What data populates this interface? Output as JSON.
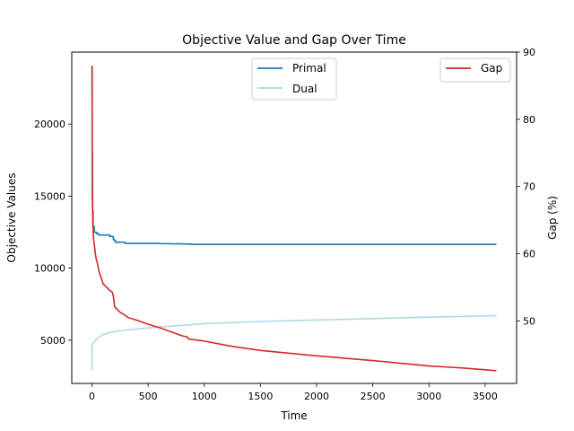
{
  "chart_data": {
    "type": "line",
    "title": "Objective Value and Gap Over Time",
    "xlabel": "Time",
    "ylabel_left": "Objective Values",
    "ylabel_right": "Gap (%)",
    "xlim": [
      -180,
      3780
    ],
    "ylim_left": [
      2000,
      25000
    ],
    "ylim_right": [
      40.7,
      90
    ],
    "x_ticks": [
      0,
      500,
      1000,
      1500,
      2000,
      2500,
      3000,
      3500
    ],
    "x_tick_labels": [
      "0",
      "500",
      "1000",
      "1500",
      "2000",
      "2500",
      "3000",
      "3500"
    ],
    "y_left_ticks": [
      5000,
      10000,
      15000,
      20000
    ],
    "y_left_tick_labels": [
      "5000",
      "10000",
      "15000",
      "20000"
    ],
    "y_right_ticks": [
      50,
      60,
      70,
      80,
      90
    ],
    "y_right_tick_labels": [
      "50",
      "60",
      "70",
      "80",
      "90"
    ],
    "grid": false,
    "legend_left": {
      "placement": "upper-center",
      "entries": [
        "Primal",
        "Dual"
      ]
    },
    "legend_right": {
      "placement": "upper-right",
      "entries": [
        "Gap"
      ]
    },
    "series": [
      {
        "name": "Primal",
        "axis": "left",
        "color": "#1f77b4",
        "step": true,
        "x": [
          0,
          2,
          4,
          6,
          10,
          20,
          40,
          60,
          160,
          190,
          200,
          210,
          290,
          300,
          500,
          600,
          650,
          700,
          800,
          850,
          880,
          1000,
          1500,
          2000,
          2500,
          3000,
          3600
        ],
        "y": [
          24000,
          18000,
          15000,
          14000,
          12900,
          12500,
          12400,
          12300,
          12200,
          12000,
          11900,
          11800,
          11750,
          11720,
          11720,
          11700,
          11700,
          11690,
          11680,
          11670,
          11650,
          11650,
          11650,
          11650,
          11650,
          11650,
          11650
        ]
      },
      {
        "name": "Dual",
        "axis": "left",
        "color": "#add8e6",
        "step": false,
        "x": [
          0,
          1,
          5,
          10,
          20,
          40,
          60,
          80,
          100,
          150,
          200,
          300,
          500,
          750,
          1000,
          1500,
          2000,
          2500,
          3000,
          3600
        ],
        "y": [
          2950,
          4500,
          4700,
          4800,
          4900,
          5050,
          5200,
          5300,
          5400,
          5500,
          5600,
          5700,
          5850,
          6000,
          6150,
          6300,
          6400,
          6500,
          6600,
          6700
        ]
      },
      {
        "name": "Gap",
        "axis": "right",
        "color": "#d62728",
        "step": false,
        "x": [
          0,
          1,
          2,
          3,
          5,
          8,
          12,
          16,
          20,
          30,
          40,
          50,
          60,
          80,
          100,
          130,
          160,
          180,
          190,
          195,
          200,
          205,
          220,
          250,
          300,
          320,
          400,
          500,
          600,
          700,
          800,
          850,
          860,
          1000,
          1250,
          1500,
          2000,
          2500,
          3000,
          3300,
          3600
        ],
        "y": [
          88,
          82,
          75,
          70,
          67,
          64.5,
          63,
          62,
          61.5,
          60,
          59,
          58.5,
          57.5,
          56.5,
          55.5,
          55,
          54.5,
          54.3,
          53.8,
          53,
          52.5,
          52,
          51.8,
          51.3,
          50.8,
          50.5,
          50.1,
          49.5,
          49,
          48.4,
          47.8,
          47.6,
          47.3,
          47,
          46.2,
          45.6,
          44.8,
          44.1,
          43.3,
          43,
          42.6
        ]
      }
    ]
  }
}
